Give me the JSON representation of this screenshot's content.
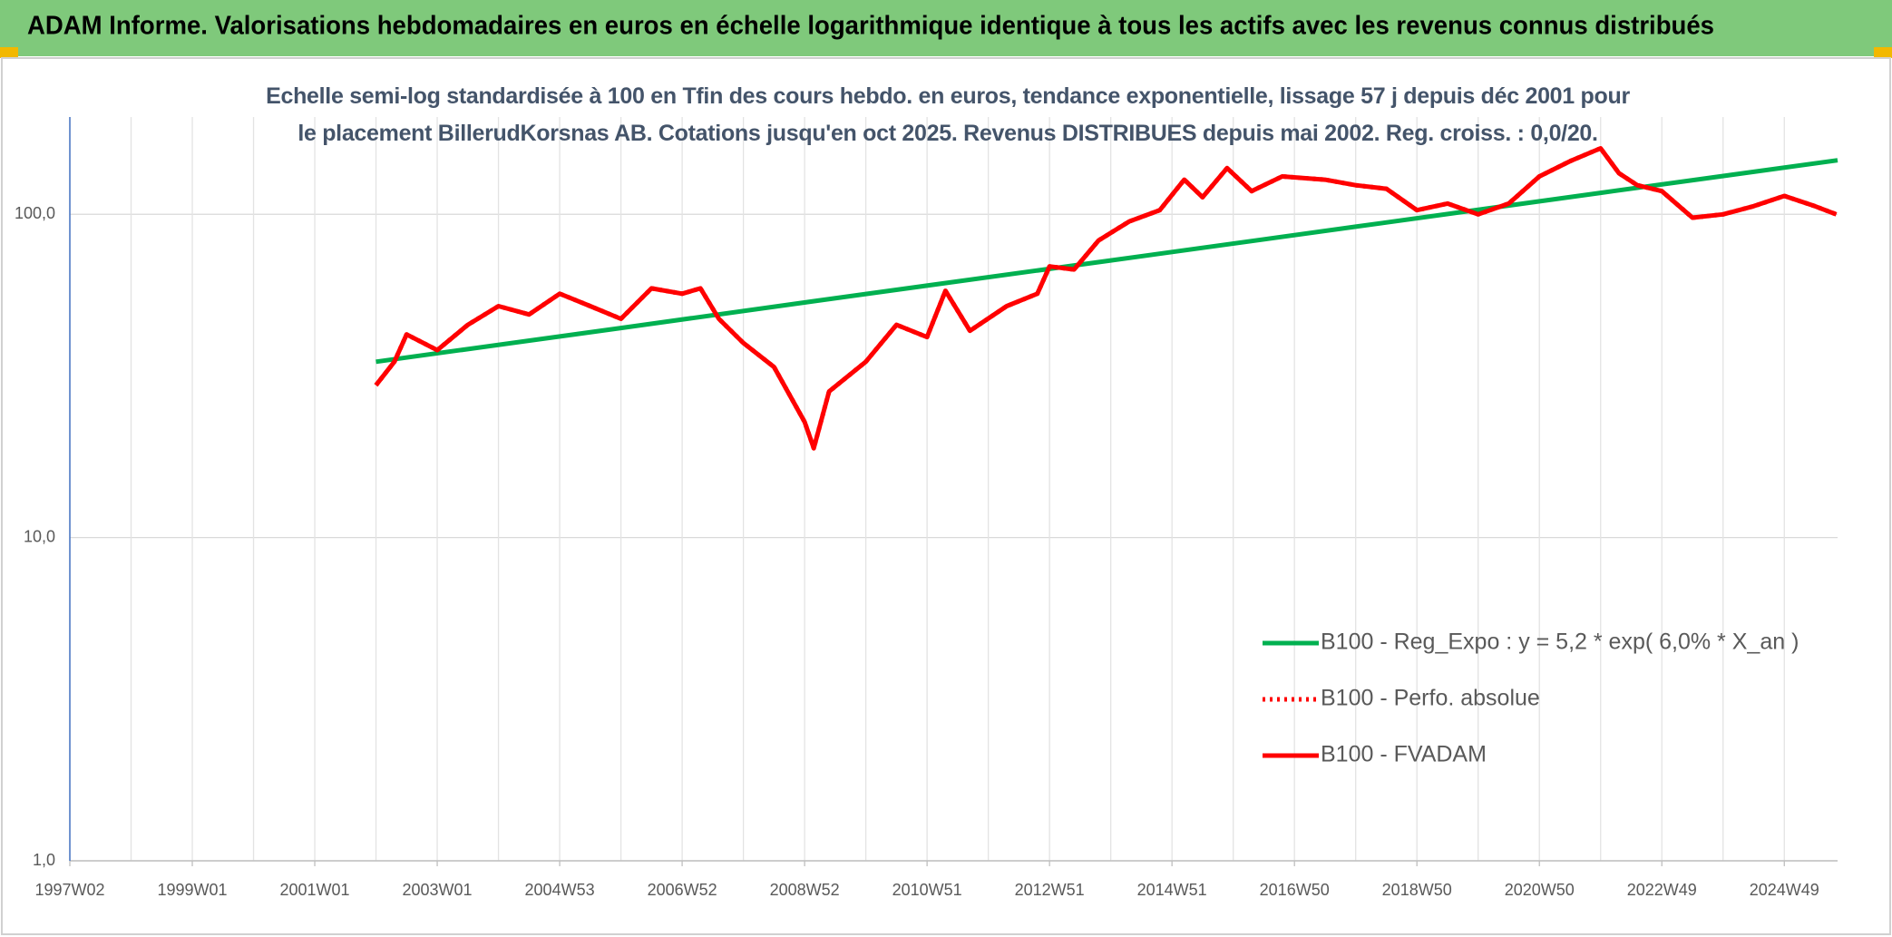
{
  "header": {
    "title": "ADAM Informe. Valorisations hebdomadaires en euros en échelle logarithmique identique à tous les actifs avec les revenus connus distribués"
  },
  "chart_data": {
    "type": "line",
    "title": "Echelle semi-log standardisée à 100 en Tfin des cours hebdo. en euros, tendance exponentielle, lissage 57 j depuis déc 2001 pour le placement BillerudKorsnas AB. Cotations jusqu'en oct 2025. Revenus DISTRIBUES depuis mai 2002. Reg. croiss. : 0,0/20.",
    "log_y": true,
    "grid": true,
    "legend": "right",
    "xlim": [
      1997,
      2025.87
    ],
    "xticks": [
      {
        "value": 1997,
        "label": "1997W02"
      },
      {
        "value": 1999,
        "label": "1999W01"
      },
      {
        "value": 2001,
        "label": "2001W01"
      },
      {
        "value": 2003,
        "label": "2003W01"
      },
      {
        "value": 2005,
        "label": "2004W53"
      },
      {
        "value": 2007,
        "label": "2006W52"
      },
      {
        "value": 2009,
        "label": "2008W52"
      },
      {
        "value": 2011,
        "label": "2010W51"
      },
      {
        "value": 2013,
        "label": "2012W51"
      },
      {
        "value": 2015,
        "label": "2014W51"
      },
      {
        "value": 2017,
        "label": "2016W50"
      },
      {
        "value": 2019,
        "label": "2018W50"
      },
      {
        "value": 2021,
        "label": "2020W50"
      },
      {
        "value": 2023,
        "label": "2022W49"
      },
      {
        "value": 2025,
        "label": "2024W49"
      }
    ],
    "ylim": [
      1,
      200
    ],
    "yticks": [
      {
        "value": 1,
        "label": "1,0"
      },
      {
        "value": 10,
        "label": "10,0"
      },
      {
        "value": 100,
        "label": "100,0"
      }
    ],
    "series": [
      {
        "name": "B100 - Reg_Expo : y = 5,2 * exp( 6,0% *  X_an )",
        "color": "#00b050",
        "style": "solid",
        "x": [
          2002,
          2006,
          2010,
          2014,
          2018,
          2022,
          2025.87
        ],
        "values": [
          35,
          44.5,
          56.7,
          72,
          91.6,
          116.5,
          147
        ]
      },
      {
        "name": "B100 - Perfo. absolue",
        "color": "#ff0000",
        "style": "dotted",
        "x": [
          2002,
          2002.3,
          2002.5,
          2003,
          2003.5,
          2004,
          2004.5,
          2005,
          2005.5,
          2006,
          2006.5,
          2007,
          2007.3,
          2007.6,
          2008,
          2008.5,
          2009,
          2009.15,
          2009.4,
          2010,
          2010.5,
          2011,
          2011.3,
          2011.7,
          2012.3,
          2012.8,
          2013,
          2013.4,
          2013.8,
          2014.3,
          2014.8,
          2015.2,
          2015.5,
          2015.9,
          2016.3,
          2016.8,
          2017.5,
          2018,
          2018.5,
          2019,
          2019.5,
          2020,
          2020.5,
          2021,
          2021.5,
          2022,
          2022.3,
          2022.6,
          2023,
          2023.5,
          2024,
          2024.5,
          2025,
          2025.5,
          2025.85
        ],
        "values": [
          29.6,
          35,
          42.5,
          38,
          45.5,
          52,
          49,
          56.8,
          52,
          47.5,
          59,
          56.8,
          59,
          47.5,
          40,
          33.7,
          22.8,
          18.9,
          28.3,
          35,
          45.5,
          41.7,
          58,
          43.6,
          52,
          56.8,
          69,
          67.5,
          83,
          95,
          103,
          128,
          113,
          139,
          118,
          131,
          128,
          123,
          120,
          103,
          108,
          100,
          108,
          131,
          146,
          160,
          134,
          123,
          118,
          97.6,
          100,
          106,
          114,
          106,
          100
        ]
      },
      {
        "name": "B100 - FVADAM",
        "color": "#ff0000",
        "style": "solid",
        "x": [
          2002,
          2002.3,
          2002.5,
          2003,
          2003.5,
          2004,
          2004.5,
          2005,
          2005.5,
          2006,
          2006.5,
          2007,
          2007.3,
          2007.6,
          2008,
          2008.5,
          2009,
          2009.15,
          2009.4,
          2010,
          2010.5,
          2011,
          2011.3,
          2011.7,
          2012.3,
          2012.8,
          2013,
          2013.4,
          2013.8,
          2014.3,
          2014.8,
          2015.2,
          2015.5,
          2015.9,
          2016.3,
          2016.8,
          2017.5,
          2018,
          2018.5,
          2019,
          2019.5,
          2020,
          2020.5,
          2021,
          2021.5,
          2022,
          2022.3,
          2022.6,
          2023,
          2023.5,
          2024,
          2024.5,
          2025,
          2025.5,
          2025.85
        ],
        "values": [
          29.6,
          35,
          42.5,
          38,
          45.5,
          52,
          49,
          56.8,
          52,
          47.5,
          59,
          56.8,
          59,
          47.5,
          40,
          33.7,
          22.8,
          18.9,
          28.3,
          35,
          45.5,
          41.7,
          58,
          43.6,
          52,
          56.8,
          69,
          67.5,
          83,
          95,
          103,
          128,
          113,
          139,
          118,
          131,
          128,
          123,
          120,
          103,
          108,
          100,
          108,
          131,
          146,
          160,
          134,
          123,
          118,
          97.6,
          100,
          106,
          114,
          106,
          100
        ]
      }
    ]
  }
}
